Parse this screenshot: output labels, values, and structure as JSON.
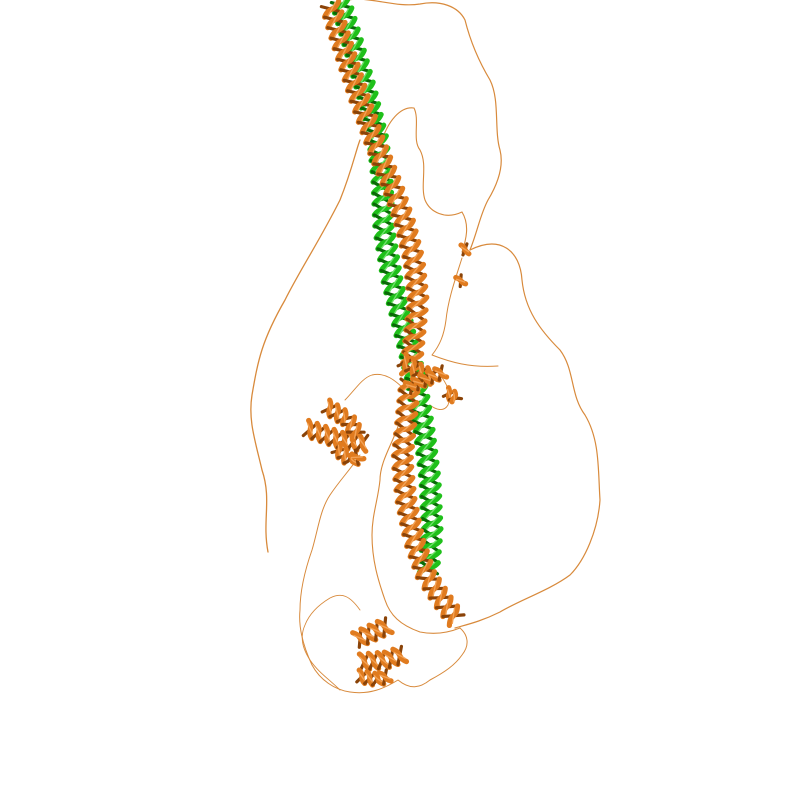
{
  "scene": {
    "background": "#ffffff",
    "colors": {
      "chain_a": "#e07b1f",
      "chain_a_light": "#f3a255",
      "chain_a_dark": "#8a4308",
      "chain_b": "#1fc01a",
      "chain_b_light": "#6fe06a",
      "chain_b_dark": "#0a6a08",
      "loop": "#d88a3c"
    }
  }
}
